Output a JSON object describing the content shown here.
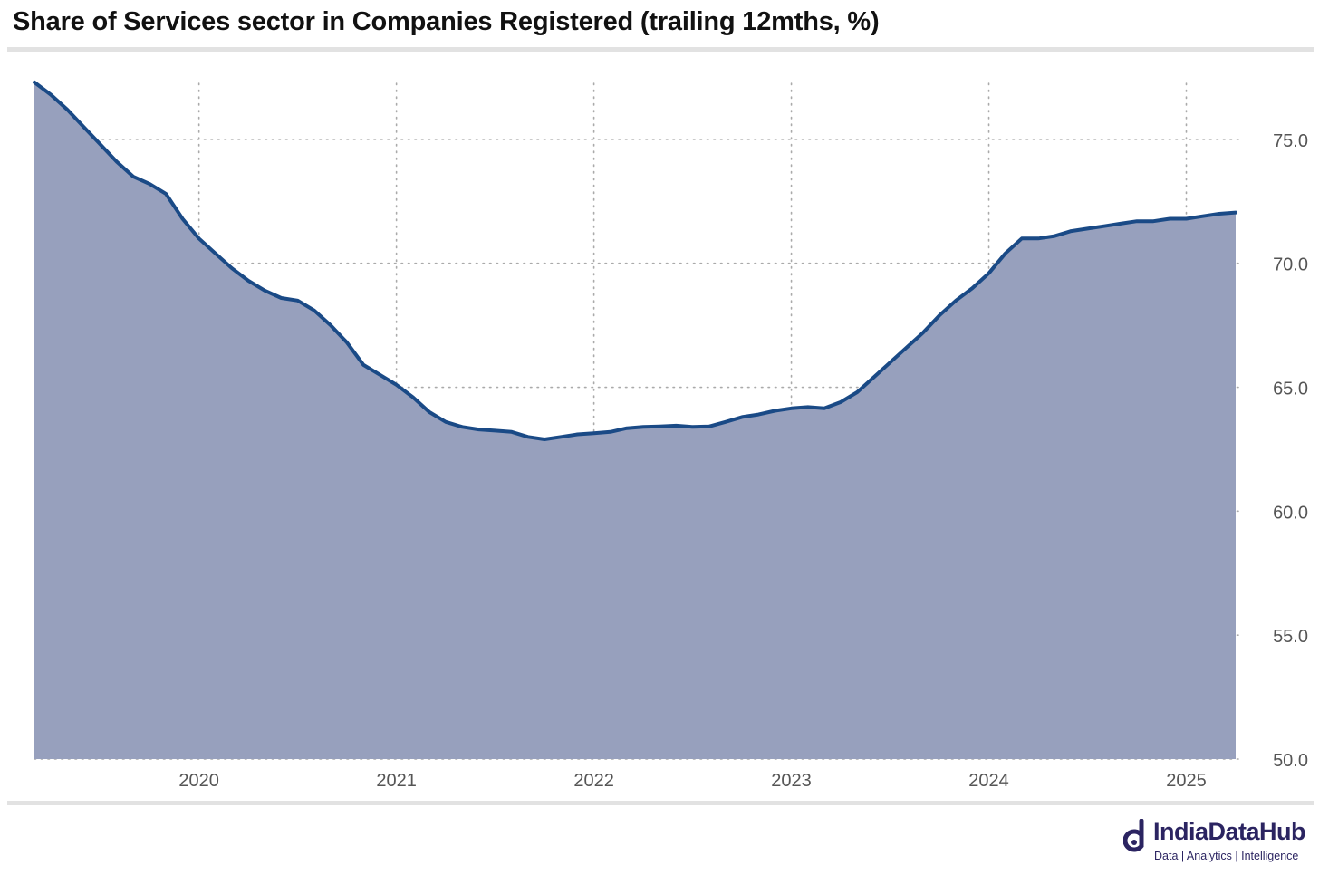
{
  "chart_title": "Share of Services sector in Companies Registered (trailing 12mths, %)",
  "brand": {
    "name": "IndiaDataHub",
    "tagline": "Data | Analytics | Intelligence",
    "color": "#2b2461"
  },
  "colors": {
    "line": "#1a4a86",
    "area": "#97a0bd",
    "grid": "#aaaaaa",
    "tick_label": "#555555"
  },
  "chart_data": {
    "type": "area",
    "title": "Share of Services sector in Companies Registered (trailing 12mths, %)",
    "xlabel": "",
    "ylabel": "",
    "y_axis_side": "right",
    "ylim": [
      50,
      77.7
    ],
    "yticks": [
      50,
      55,
      60,
      65,
      70,
      75
    ],
    "ytick_labels": [
      "50.0",
      "55.0",
      "60.0",
      "65.0",
      "70.0",
      "75.0"
    ],
    "xlim": [
      "2019-03",
      "2025-04"
    ],
    "xtick_labels": [
      "2020",
      "2021",
      "2022",
      "2023",
      "2024",
      "2025"
    ],
    "grid": "dotted",
    "x": [
      "2019-03",
      "2019-04",
      "2019-05",
      "2019-06",
      "2019-07",
      "2019-08",
      "2019-09",
      "2019-10",
      "2019-11",
      "2019-12",
      "2020-01",
      "2020-02",
      "2020-03",
      "2020-04",
      "2020-05",
      "2020-06",
      "2020-07",
      "2020-08",
      "2020-09",
      "2020-10",
      "2020-11",
      "2020-12",
      "2021-01",
      "2021-02",
      "2021-03",
      "2021-04",
      "2021-05",
      "2021-06",
      "2021-07",
      "2021-08",
      "2021-09",
      "2021-10",
      "2021-11",
      "2021-12",
      "2022-01",
      "2022-02",
      "2022-03",
      "2022-04",
      "2022-05",
      "2022-06",
      "2022-07",
      "2022-08",
      "2022-09",
      "2022-10",
      "2022-11",
      "2022-12",
      "2023-01",
      "2023-02",
      "2023-03",
      "2023-04",
      "2023-05",
      "2023-06",
      "2023-07",
      "2023-08",
      "2023-09",
      "2023-10",
      "2023-11",
      "2023-12",
      "2024-01",
      "2024-02",
      "2024-03",
      "2024-04",
      "2024-05",
      "2024-06",
      "2024-07",
      "2024-08",
      "2024-09",
      "2024-10",
      "2024-11",
      "2024-12",
      "2025-01",
      "2025-02",
      "2025-03",
      "2025-04"
    ],
    "series": [
      {
        "values": [
          77.3,
          76.8,
          76.2,
          75.5,
          74.8,
          74.1,
          73.5,
          73.2,
          72.8,
          71.8,
          71.0,
          70.4,
          69.8,
          69.3,
          68.9,
          68.6,
          68.5,
          68.1,
          67.5,
          66.8,
          65.9,
          65.5,
          65.1,
          64.6,
          64.0,
          63.6,
          63.4,
          63.3,
          63.25,
          63.2,
          63.0,
          62.9,
          63.0,
          63.1,
          63.15,
          63.2,
          63.35,
          63.4,
          63.42,
          63.45,
          63.4,
          63.42,
          63.6,
          63.8,
          63.9,
          64.05,
          64.15,
          64.2,
          64.15,
          64.4,
          64.8,
          65.4,
          66.0,
          66.6,
          67.2,
          67.9,
          68.5,
          69.0,
          69.6,
          70.4,
          71.0,
          71.0,
          71.1,
          71.3,
          71.4,
          71.5,
          71.6,
          71.7,
          71.7,
          71.8,
          71.8,
          71.9,
          72.0,
          72.05
        ]
      }
    ]
  }
}
